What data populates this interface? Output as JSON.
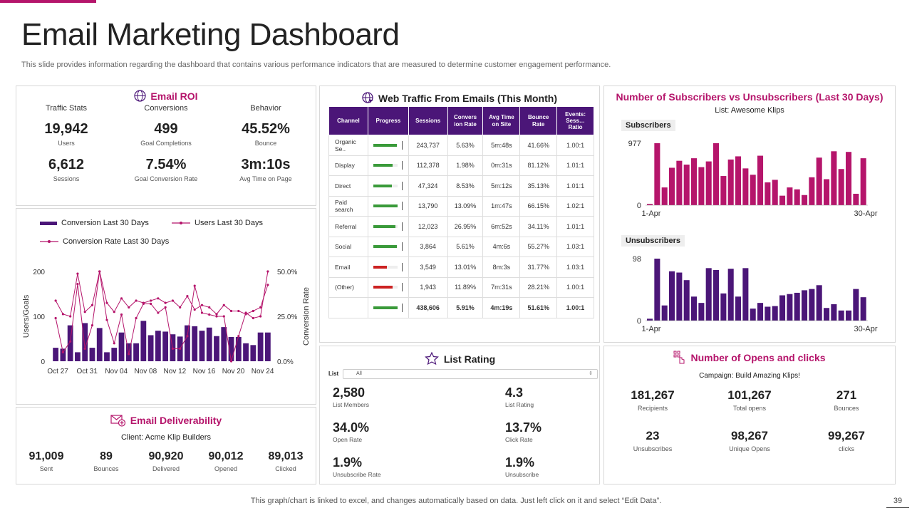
{
  "header": {
    "title": "Email Marketing Dashboard",
    "subtitle": "This slide provides information regarding the dashboard that contains various performance indicators that are measured to determine customer engagement performance."
  },
  "email_roi": {
    "title": "Email ROI",
    "col_headers": [
      "Traffic Stats",
      "Conversions",
      "Behavior"
    ],
    "row1": [
      {
        "value": "19,942",
        "label": "Users"
      },
      {
        "value": "499",
        "label": "Goal Completions"
      },
      {
        "value": "45.52%",
        "label": "Bounce"
      }
    ],
    "row2": [
      {
        "value": "6,612",
        "label": "Sessions"
      },
      {
        "value": "7.54%",
        "label": "Goal Conversion Rate"
      },
      {
        "value": "3m:10s",
        "label": "Avg Time on Page"
      }
    ]
  },
  "web_traffic": {
    "title": "Web Traffic From Emails (This Month)",
    "columns": [
      "Channel",
      "Progress",
      "Sessions",
      "Convers ion Rate",
      "Avg Time on Site",
      "Bounce Rate",
      "Events: Sess… Ratio"
    ],
    "rows": [
      {
        "channel": "Organic Se..",
        "progress": 0.95,
        "color": "#3a9a3a",
        "sessions": "243,737",
        "conv": "5.63%",
        "time": "5m:48s",
        "bounce": "41.66%",
        "ratio": "1.00:1"
      },
      {
        "channel": "Display",
        "progress": 0.8,
        "color": "#3a9a3a",
        "sessions": "112,378",
        "conv": "1.98%",
        "time": "0m:31s",
        "bounce": "81.12%",
        "ratio": "1.01:1"
      },
      {
        "channel": "Direct",
        "progress": 0.75,
        "color": "#3a9a3a",
        "sessions": "47,324",
        "conv": "8.53%",
        "time": "5m:12s",
        "bounce": "35.13%",
        "ratio": "1.01:1"
      },
      {
        "channel": "Paid search",
        "progress": 1.0,
        "color": "#3a9a3a",
        "sessions": "13,790",
        "conv": "13.09%",
        "time": "1m:47s",
        "bounce": "66.15%",
        "ratio": "1.02:1"
      },
      {
        "channel": "Referral",
        "progress": 0.9,
        "color": "#3a9a3a",
        "sessions": "12,023",
        "conv": "26.95%",
        "time": "6m:52s",
        "bounce": "34.11%",
        "ratio": "1.01:1"
      },
      {
        "channel": "Social",
        "progress": 0.95,
        "color": "#3a9a3a",
        "sessions": "3,864",
        "conv": "5.61%",
        "time": "4m:6s",
        "bounce": "55.27%",
        "ratio": "1.03:1"
      },
      {
        "channel": "Email",
        "progress": 0.55,
        "color": "#cc2222",
        "sessions": "3,549",
        "conv": "13.01%",
        "time": "8m:3s",
        "bounce": "31.77%",
        "ratio": "1.03:1"
      },
      {
        "channel": "(Other)",
        "progress": 0.8,
        "color": "#cc2222",
        "sessions": "1,943",
        "conv": "11.89%",
        "time": "7m:31s",
        "bounce": "28.21%",
        "ratio": "1.00:1"
      }
    ],
    "total": {
      "progress": 1.0,
      "color": "#3a9a3a",
      "sessions": "438,606",
      "conv": "5.91%",
      "time": "4m:19s",
      "bounce": "51.61%",
      "ratio": "1.00:1"
    }
  },
  "subs": {
    "title": "Number of Subscribers vs Unsubscribers (Last 30 Days)",
    "list_label": "List: Awesome Klips",
    "sub_tag": "Subscribers",
    "unsub_tag": "Unsubscribers",
    "x_start": "1-Apr",
    "x_end": "30-Apr",
    "sub_ymax": "977",
    "sub_ymin": "0",
    "unsub_ymax": "98",
    "unsub_ymin": "0"
  },
  "conversion": {
    "legend": [
      "Conversion Last 30 Days",
      "Users Last 30 Days",
      "Conversion Rate Last 30 Days"
    ],
    "yleft_label": "Users/Goals",
    "yright_label": "Conversion Rate",
    "yleft_ticks": [
      "200",
      "100",
      "0"
    ],
    "yright_ticks": [
      "50.0%",
      "25.0%",
      "0.0%"
    ],
    "xticks": [
      "Oct 27",
      "Oct 31",
      "Nov 04",
      "Nov 08",
      "Nov 12",
      "Nov 16",
      "Nov 20",
      "Nov 24"
    ]
  },
  "deliverability": {
    "title": "Email Deliverability",
    "client": "Client:  Acme Klip Builders",
    "items": [
      {
        "value": "91,009",
        "label": "Sent"
      },
      {
        "value": "89",
        "label": "Bounces"
      },
      {
        "value": "90,920",
        "label": "Delivered"
      },
      {
        "value": "90,012",
        "label": "Opened"
      },
      {
        "value": "89,013",
        "label": "Clicked"
      }
    ]
  },
  "list_rating": {
    "title": "List Rating",
    "list_label": "List",
    "select_value": "All",
    "items": [
      {
        "value": "2,580",
        "label": "List Members"
      },
      {
        "value": "4.3",
        "label": "List Rating"
      },
      {
        "value": "34.0%",
        "label": "Open Rate"
      },
      {
        "value": "13.7%",
        "label": "Click Rate"
      },
      {
        "value": "1.9%",
        "label": "Unsubscribe  Rate"
      },
      {
        "value": "1.9%",
        "label": "Unsubscribe"
      }
    ]
  },
  "opens": {
    "title": "Number of Opens and clicks",
    "campaign": "Campaign:  Build Amazing Klips!",
    "items": [
      {
        "value": "181,267",
        "label": "Recipients"
      },
      {
        "value": "101,267",
        "label": "Total opens"
      },
      {
        "value": "271",
        "label": "Bounces"
      },
      {
        "value": "23",
        "label": "Unsubscribes"
      },
      {
        "value": "98,267",
        "label": "Unique Opens"
      },
      {
        "value": "99,267",
        "label": "clicks"
      }
    ]
  },
  "footer": {
    "note": "This graph/chart is linked to excel,  and changes automatically based on data. Just left click on it and select “Edit Data”.",
    "page": "39"
  },
  "chart_data": [
    {
      "type": "bar",
      "name": "Subscribers",
      "x_start": "1-Apr",
      "x_end": "30-Apr",
      "ylim": [
        0,
        977
      ],
      "values": [
        20,
        977,
        280,
        590,
        700,
        640,
        740,
        600,
        690,
        977,
        460,
        720,
        770,
        580,
        480,
        780,
        360,
        400,
        150,
        280,
        250,
        160,
        440,
        750,
        410,
        850,
        570,
        840,
        180,
        740
      ]
    },
    {
      "type": "bar",
      "name": "Unsubscribers",
      "x_start": "1-Apr",
      "x_end": "30-Apr",
      "ylim": [
        0,
        98
      ],
      "values": [
        3,
        98,
        24,
        78,
        76,
        64,
        38,
        28,
        83,
        80,
        43,
        82,
        38,
        83,
        19,
        28,
        22,
        23,
        40,
        42,
        44,
        48,
        50,
        56,
        20,
        26,
        16,
        16,
        50,
        37
      ]
    },
    {
      "type": "line",
      "x_ticks": [
        "Oct 27",
        "Oct 31",
        "Nov 04",
        "Nov 08",
        "Nov 12",
        "Nov 16",
        "Nov 20",
        "Nov 24"
      ],
      "series": [
        {
          "name": "Conversion Last 30 Days",
          "kind": "bar",
          "axis": "left",
          "values": [
            30,
            28,
            80,
            20,
            85,
            30,
            74,
            20,
            30,
            64,
            40,
            40,
            90,
            58,
            68,
            66,
            60,
            55,
            80,
            78,
            68,
            75,
            56,
            76,
            54,
            54,
            40,
            36,
            64,
            64
          ]
        },
        {
          "name": "Users Last 30 Days",
          "kind": "line",
          "axis": "left",
          "values": [
            135,
            105,
            100,
            195,
            110,
            125,
            200,
            130,
            110,
            140,
            120,
            135,
            130,
            135,
            140,
            130,
            135,
            120,
            145,
            115,
            125,
            120,
            105,
            125,
            112,
            112,
            105,
            112,
            120,
            170
          ]
        },
        {
          "name": "Conversion Rate Last 30 Days",
          "kind": "line",
          "axis": "right",
          "values": [
            24,
            5,
            11,
            43,
            7,
            20,
            50,
            23,
            10,
            26,
            4,
            24,
            32,
            32,
            27,
            30,
            7,
            7,
            14,
            42,
            27,
            26,
            25,
            25,
            0,
            14,
            27,
            24,
            25,
            50
          ]
        }
      ],
      "yleft": [
        0,
        200
      ],
      "yright": [
        0,
        50
      ]
    }
  ]
}
